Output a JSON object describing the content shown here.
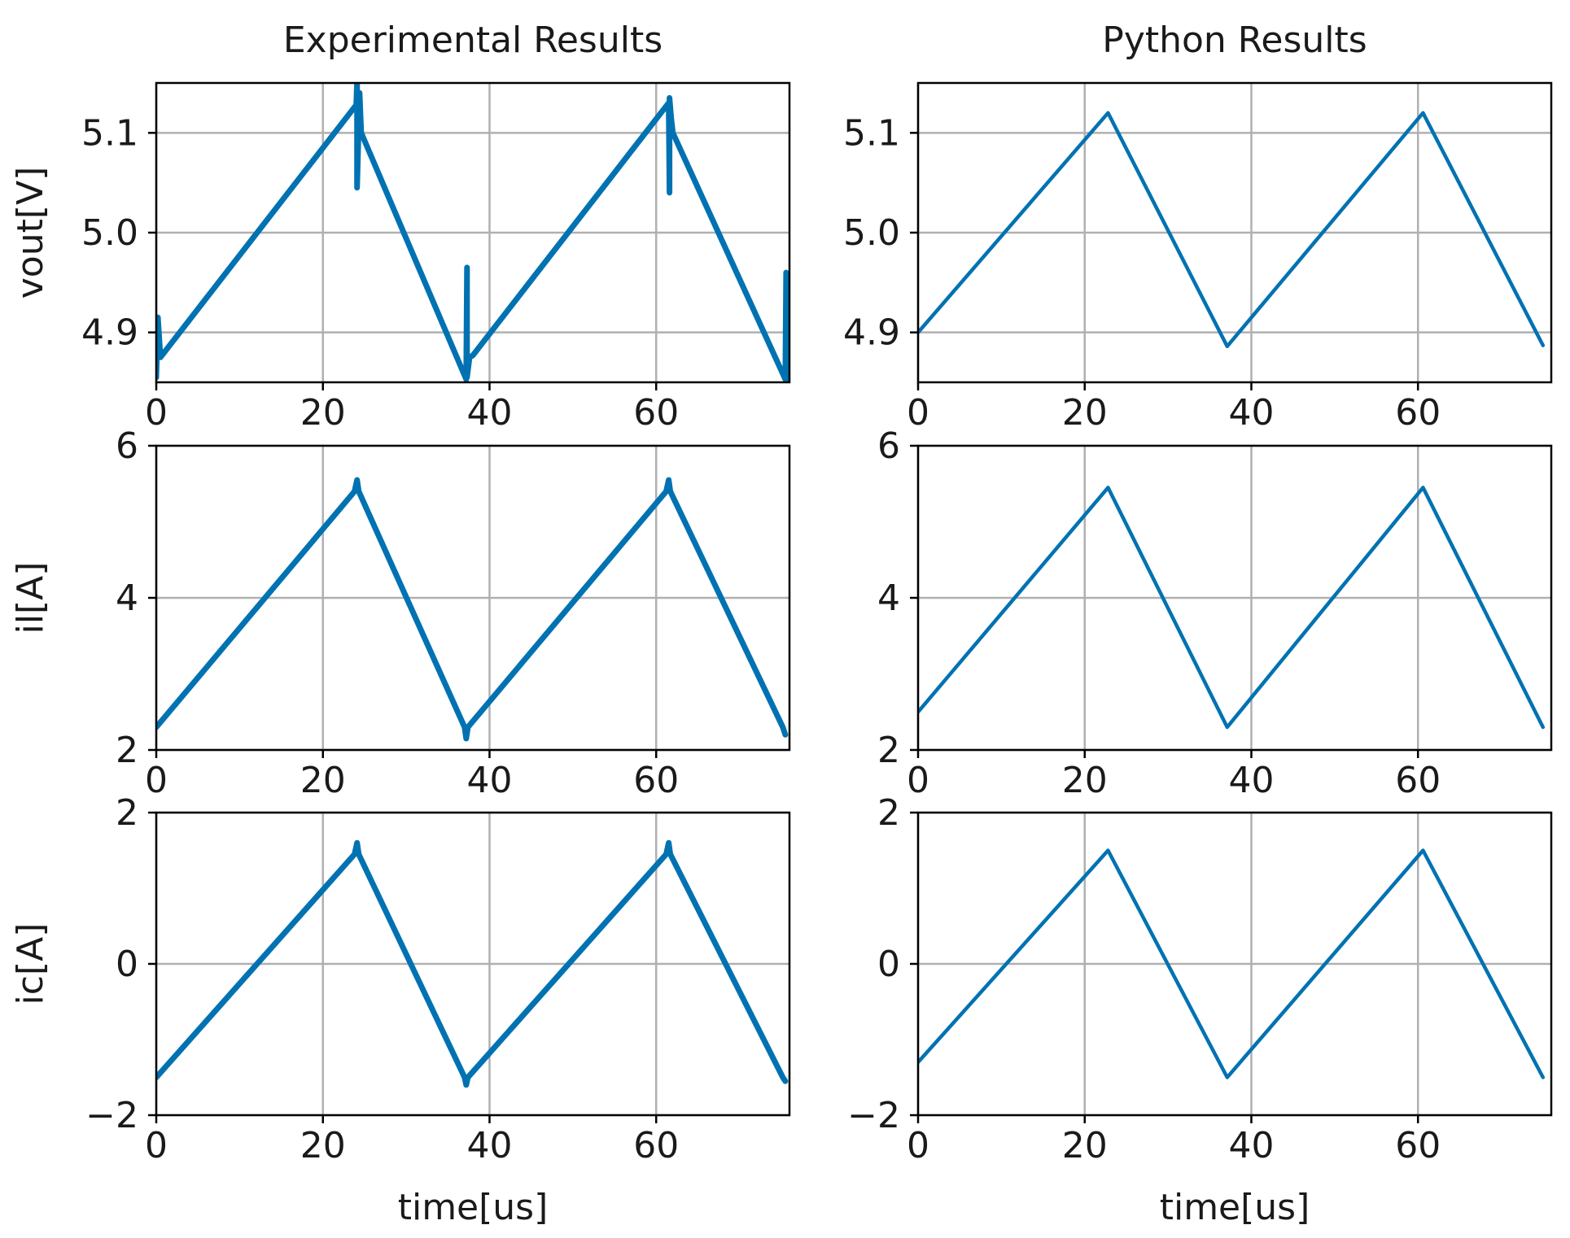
{
  "colors": {
    "series": "#0072b2"
  },
  "chart_data": [
    {
      "type": "line",
      "id": "exp-vout",
      "title": "Experimental Results",
      "xlabel": "",
      "ylabel": "vout[V]",
      "xlim": [
        0,
        76
      ],
      "ylim": [
        4.85,
        5.15
      ],
      "xticks": [
        0,
        20,
        40,
        60
      ],
      "xtick_labels": [
        "0",
        "20",
        "40",
        "60"
      ],
      "yticks": [
        4.9,
        5.0,
        5.1
      ],
      "ytick_labels": [
        "4.9",
        "5.0",
        "5.1"
      ],
      "grid": true,
      "series": [
        {
          "name": "vout",
          "line_width": 7,
          "x": [
            0,
            0.2,
            0.5,
            24,
            24.1,
            24.1,
            24.4,
            24.6,
            37.2,
            37.3,
            37.3,
            37.6,
            38.0,
            61.5,
            61.6,
            61.6,
            61.8,
            62.0,
            75.5,
            75.6,
            75.6,
            75.8
          ],
          "y": [
            4.855,
            4.915,
            4.875,
            5.128,
            5.15,
            5.045,
            5.14,
            5.1,
            4.853,
            4.965,
            4.855,
            4.875,
            4.877,
            5.13,
            5.04,
            5.135,
            5.115,
            5.1,
            4.853,
            4.96,
            4.852,
            4.855
          ]
        }
      ]
    },
    {
      "type": "line",
      "id": "py-vout",
      "title": "Python Results",
      "xlabel": "",
      "ylabel": "",
      "xlim": [
        0,
        76
      ],
      "ylim": [
        4.85,
        5.15
      ],
      "xticks": [
        0,
        20,
        40,
        60
      ],
      "xtick_labels": [
        "0",
        "20",
        "40",
        "60"
      ],
      "yticks": [
        4.9,
        5.0,
        5.1
      ],
      "ytick_labels": [
        "4.9",
        "5.0",
        "5.1"
      ],
      "grid": true,
      "series": [
        {
          "name": "vout",
          "line_width": 4.5,
          "x": [
            0,
            22.8,
            37.1,
            60.6,
            75
          ],
          "y": [
            4.9,
            5.12,
            4.886,
            5.12,
            4.887
          ]
        }
      ]
    },
    {
      "type": "line",
      "id": "exp-il",
      "title": "",
      "xlabel": "",
      "ylabel": "il[A]",
      "xlim": [
        0,
        76
      ],
      "ylim": [
        2,
        6
      ],
      "xticks": [
        0,
        20,
        40,
        60
      ],
      "xtick_labels": [
        "0",
        "20",
        "40",
        "60"
      ],
      "yticks": [
        2,
        4,
        6
      ],
      "ytick_labels": [
        "2",
        "4",
        "6"
      ],
      "grid": true,
      "series": [
        {
          "name": "il",
          "line_width": 7,
          "x": [
            0,
            23.8,
            24.1,
            24.3,
            37.0,
            37.2,
            37.4,
            61.2,
            61.5,
            61.7,
            75.2,
            75.5
          ],
          "y": [
            2.3,
            5.4,
            5.55,
            5.4,
            2.3,
            2.15,
            2.3,
            5.4,
            5.55,
            5.4,
            2.3,
            2.2
          ]
        }
      ]
    },
    {
      "type": "line",
      "id": "py-il",
      "title": "",
      "xlabel": "",
      "ylabel": "",
      "xlim": [
        0,
        76
      ],
      "ylim": [
        2,
        6
      ],
      "xticks": [
        0,
        20,
        40,
        60
      ],
      "xtick_labels": [
        "0",
        "20",
        "40",
        "60"
      ],
      "yticks": [
        2,
        4,
        6
      ],
      "ytick_labels": [
        "2",
        "4",
        "6"
      ],
      "grid": true,
      "series": [
        {
          "name": "il",
          "line_width": 4.5,
          "x": [
            0,
            22.8,
            37.1,
            60.6,
            75
          ],
          "y": [
            2.5,
            5.45,
            2.3,
            5.45,
            2.3
          ]
        }
      ]
    },
    {
      "type": "line",
      "id": "exp-ic",
      "title": "",
      "xlabel": "time[us]",
      "ylabel": "ic[A]",
      "xlim": [
        0,
        76
      ],
      "ylim": [
        -2,
        2
      ],
      "xticks": [
        0,
        20,
        40,
        60
      ],
      "xtick_labels": [
        "0",
        "20",
        "40",
        "60"
      ],
      "yticks": [
        -2,
        0,
        2
      ],
      "ytick_labels": [
        "−2",
        "0",
        "2"
      ],
      "grid": true,
      "series": [
        {
          "name": "ic",
          "line_width": 7,
          "x": [
            0,
            23.8,
            24.1,
            24.3,
            37.0,
            37.2,
            37.4,
            61.2,
            61.5,
            61.7,
            75.2,
            75.5
          ],
          "y": [
            -1.5,
            1.45,
            1.6,
            1.45,
            -1.5,
            -1.6,
            -1.5,
            1.45,
            1.6,
            1.45,
            -1.5,
            -1.55
          ]
        }
      ]
    },
    {
      "type": "line",
      "id": "py-ic",
      "title": "",
      "xlabel": "time[us]",
      "ylabel": "",
      "xlim": [
        0,
        76
      ],
      "ylim": [
        -2,
        2
      ],
      "xticks": [
        0,
        20,
        40,
        60
      ],
      "xtick_labels": [
        "0",
        "20",
        "40",
        "60"
      ],
      "yticks": [
        -2,
        0,
        2
      ],
      "ytick_labels": [
        "−2",
        "0",
        "2"
      ],
      "grid": true,
      "series": [
        {
          "name": "ic",
          "line_width": 4.5,
          "x": [
            0,
            22.8,
            37.1,
            60.6,
            75
          ],
          "y": [
            -1.3,
            1.5,
            -1.5,
            1.5,
            -1.5
          ]
        }
      ]
    }
  ]
}
